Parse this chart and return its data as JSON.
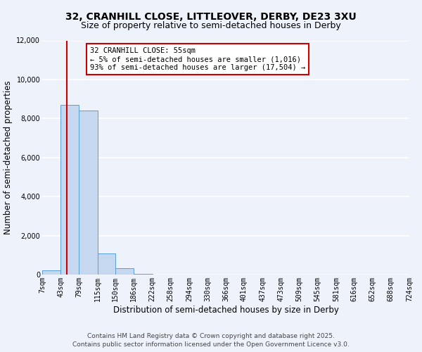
{
  "title_line1": "32, CRANHILL CLOSE, LITTLEOVER, DERBY, DE23 3XU",
  "title_line2": "Size of property relative to semi-detached houses in Derby",
  "xlabel": "Distribution of semi-detached houses by size in Derby",
  "ylabel": "Number of semi-detached properties",
  "bar_edges": [
    7,
    43,
    79,
    115,
    150,
    186,
    222,
    258,
    294,
    330,
    366,
    401,
    437,
    473,
    509,
    545,
    581,
    616,
    652,
    688,
    724
  ],
  "bar_heights": [
    200,
    8700,
    8400,
    1100,
    330,
    50,
    0,
    0,
    0,
    0,
    0,
    0,
    0,
    0,
    0,
    0,
    0,
    0,
    0,
    0
  ],
  "tick_labels": [
    "7sqm",
    "43sqm",
    "79sqm",
    "115sqm",
    "150sqm",
    "186sqm",
    "222sqm",
    "258sqm",
    "294sqm",
    "330sqm",
    "366sqm",
    "401sqm",
    "437sqm",
    "473sqm",
    "509sqm",
    "545sqm",
    "581sqm",
    "616sqm",
    "652sqm",
    "688sqm",
    "724sqm"
  ],
  "bar_color": "#c5d8f0",
  "bar_edge_color": "#5a9fd4",
  "property_size": 55,
  "property_line_color": "#cc0000",
  "annotation_title": "32 CRANHILL CLOSE: 55sqm",
  "annotation_line1": "← 5% of semi-detached houses are smaller (1,016)",
  "annotation_line2": "93% of semi-detached houses are larger (17,504) →",
  "annotation_box_color": "#cc0000",
  "ylim": [
    0,
    12000
  ],
  "yticks": [
    0,
    2000,
    4000,
    6000,
    8000,
    10000,
    12000
  ],
  "footer1": "Contains HM Land Registry data © Crown copyright and database right 2025.",
  "footer2": "Contains public sector information licensed under the Open Government Licence v3.0.",
  "background_color": "#eef2fa",
  "grid_color": "#ffffff",
  "title_fontsize": 10,
  "subtitle_fontsize": 9,
  "axis_label_fontsize": 8.5,
  "tick_fontsize": 7,
  "annotation_fontsize": 7.5,
  "footer_fontsize": 6.5
}
